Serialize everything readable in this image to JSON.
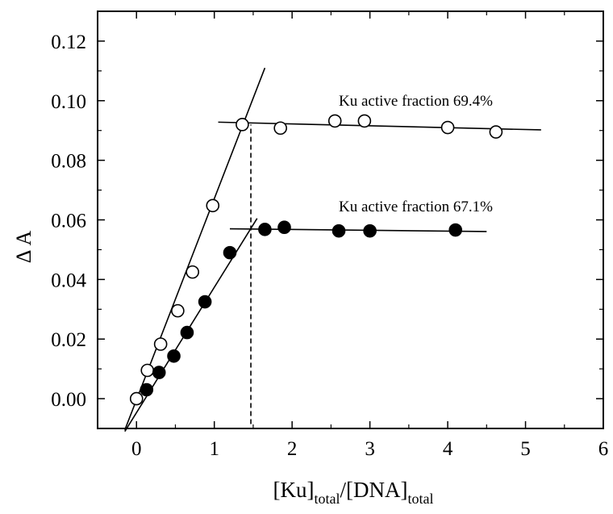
{
  "chart_data": {
    "type": "scatter",
    "title": "",
    "xlabel": {
      "parts": [
        "[Ku]",
        "total",
        "/[DNA]",
        "total"
      ]
    },
    "ylabel": "Δ A",
    "xlim": [
      -0.5,
      6
    ],
    "ylim": [
      -0.01,
      0.13
    ],
    "xticks": [
      0,
      1,
      2,
      3,
      4,
      5,
      6
    ],
    "yticks": [
      0.0,
      0.02,
      0.04,
      0.06,
      0.08,
      0.1,
      0.12
    ],
    "xtick_labels": [
      "0",
      "1",
      "2",
      "3",
      "4",
      "5",
      "6"
    ],
    "ytick_labels": [
      "0.00",
      "0.02",
      "0.04",
      "0.06",
      "0.08",
      "0.10",
      "0.12"
    ],
    "grid": false,
    "series": [
      {
        "marker": "open-circle",
        "points": [
          [
            0.0,
            0.0
          ],
          [
            0.14,
            0.0095
          ],
          [
            0.31,
            0.0183
          ],
          [
            0.53,
            0.0295
          ],
          [
            0.72,
            0.0425
          ],
          [
            0.98,
            0.0648
          ],
          [
            1.36,
            0.092
          ],
          [
            1.85,
            0.0908
          ],
          [
            2.55,
            0.0932
          ],
          [
            2.93,
            0.0932
          ],
          [
            4.0,
            0.091
          ],
          [
            4.62,
            0.0895
          ]
        ],
        "fit_lines": [
          {
            "x": [
              -0.15,
              1.65
            ],
            "y": [
              -0.0105,
              0.111
            ]
          },
          {
            "x": [
              1.05,
              5.2
            ],
            "y": [
              0.0928,
              0.0902
            ]
          }
        ],
        "annotation": "Ku active fraction 69.4%"
      },
      {
        "marker": "filled-circle",
        "points": [
          [
            0.13,
            0.003
          ],
          [
            0.29,
            0.0088
          ],
          [
            0.48,
            0.0143
          ],
          [
            0.65,
            0.0222
          ],
          [
            0.88,
            0.0325
          ],
          [
            1.2,
            0.049
          ],
          [
            1.65,
            0.0568
          ],
          [
            1.9,
            0.0575
          ],
          [
            2.6,
            0.0563
          ],
          [
            3.0,
            0.0563
          ],
          [
            4.1,
            0.0566
          ]
        ],
        "fit_lines": [
          {
            "x": [
              -0.15,
              1.55
            ],
            "y": [
              -0.011,
              0.0605
            ]
          },
          {
            "x": [
              1.2,
              4.5
            ],
            "y": [
              0.057,
              0.0561
            ]
          }
        ],
        "annotation": "Ku active fraction 67.1%"
      }
    ],
    "vertical_dashed_line": {
      "x": 1.47,
      "y": [
        -0.0085,
        0.092
      ]
    }
  }
}
